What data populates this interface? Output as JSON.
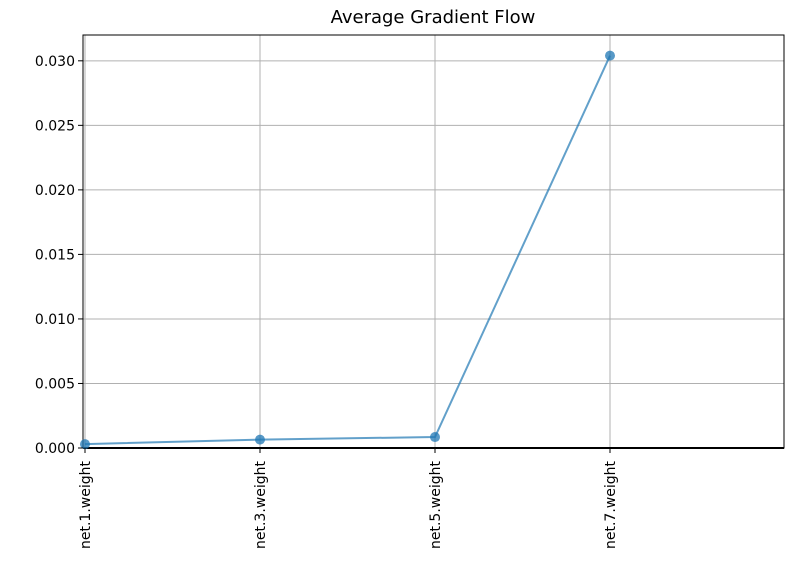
{
  "chart_data": {
    "type": "line",
    "title": "Average Gradient Flow",
    "xlabel": "",
    "ylabel": "",
    "categories": [
      "net.1.weight",
      "net.3.weight",
      "net.5.weight",
      "net.7.weight"
    ],
    "values": [
      0.0003,
      0.00065,
      0.00085,
      0.0304
    ],
    "ylim": [
      0,
      0.032
    ],
    "yticks": [
      "0.000",
      "0.005",
      "0.010",
      "0.015",
      "0.020",
      "0.025",
      "0.030"
    ],
    "ytick_values": [
      0,
      0.005,
      0.01,
      0.015,
      0.02,
      0.025,
      0.03
    ],
    "grid": true,
    "colors": {
      "line": "#1f77b4",
      "grid": "#b0b0b0",
      "axis": "#000000"
    },
    "line_alpha": 0.7,
    "markers": "circle"
  }
}
